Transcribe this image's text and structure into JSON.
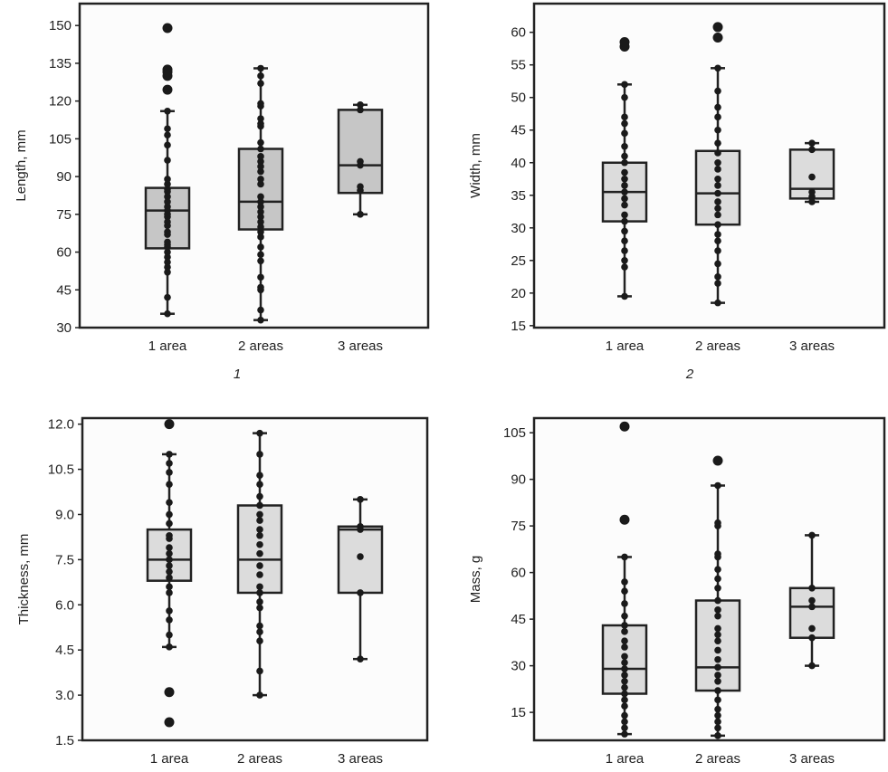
{
  "chart_data": [
    {
      "type": "box",
      "ylabel": "Length, mm",
      "caption": "1",
      "categories": [
        "1 area",
        "2 areas",
        "3 areas"
      ],
      "yticks": [
        30,
        45,
        60,
        75,
        90,
        105,
        120,
        135,
        150
      ],
      "ylim": [
        30,
        158.7
      ],
      "box_fill": "#c6c6c6",
      "groups": [
        {
          "whisker_low": 35.5,
          "q1": 61.5,
          "median": 76.5,
          "q3": 85.5,
          "whisker_high": 116,
          "outliers": [
            124.5,
            130,
            131.5,
            132.5,
            149
          ],
          "points": [
            35.5,
            42,
            52,
            54,
            56,
            58,
            60,
            62,
            63,
            64,
            67,
            68,
            70.5,
            72,
            74,
            75,
            76.5,
            78,
            80,
            82,
            84,
            85,
            87,
            89,
            96.5,
            102.5,
            106.5,
            109,
            116
          ]
        },
        {
          "whisker_low": 33,
          "q1": 69,
          "median": 80,
          "q3": 101,
          "whisker_high": 133,
          "outliers": [],
          "points": [
            33,
            37,
            45,
            46,
            50,
            56.5,
            59,
            62,
            66,
            68,
            70,
            72,
            74,
            76,
            78,
            80,
            82,
            87,
            89,
            92,
            94,
            96,
            98,
            101,
            103.5,
            110,
            111,
            113,
            118,
            119,
            127,
            130,
            133
          ]
        },
        {
          "whisker_low": 75,
          "q1": 83.5,
          "median": 94.5,
          "q3": 116.5,
          "whisker_high": 118.5,
          "outliers": [],
          "points": [
            75,
            84.5,
            86,
            94.5,
            96,
            116.5,
            118.5
          ]
        }
      ]
    },
    {
      "type": "box",
      "ylabel": "Width, mm",
      "caption": "2",
      "categories": [
        "1 area",
        "2 areas",
        "3 areas"
      ],
      "yticks": [
        15,
        20,
        25,
        30,
        35,
        40,
        45,
        50,
        55,
        60
      ],
      "ylim": [
        14.7,
        64.4
      ],
      "box_fill": "#dcdcdc",
      "groups": [
        {
          "whisker_low": 19.5,
          "q1": 31,
          "median": 35.5,
          "q3": 40,
          "whisker_high": 52,
          "outliers": [
            57.8,
            58.5
          ],
          "points": [
            19.5,
            24,
            25,
            26.5,
            28,
            29.5,
            31,
            32,
            33.5,
            34.5,
            35.5,
            36.5,
            37.5,
            38.5,
            40,
            41,
            42.5,
            44.5,
            46,
            47,
            50,
            52
          ]
        },
        {
          "whisker_low": 18.5,
          "q1": 30.5,
          "median": 35.3,
          "q3": 41.8,
          "whisker_high": 54.5,
          "outliers": [
            59.2,
            60.8
          ],
          "points": [
            18.5,
            21.5,
            22.5,
            24.5,
            26.5,
            28,
            29,
            30.5,
            32,
            33,
            34,
            35.3,
            36.5,
            37.5,
            39,
            40,
            41.5,
            43,
            45,
            47,
            48.5,
            51,
            54.5
          ]
        },
        {
          "whisker_low": 34,
          "q1": 34.5,
          "median": 36,
          "q3": 42,
          "whisker_high": 43,
          "outliers": [],
          "points": [
            34,
            34.8,
            35.5,
            37.8,
            42,
            43
          ]
        }
      ]
    },
    {
      "type": "box",
      "ylabel": "Thickness, mm",
      "caption": "",
      "categories": [
        "1 area",
        "2 areas",
        "3 areas"
      ],
      "yticks": [
        1.5,
        3.0,
        4.5,
        6.0,
        7.5,
        9.0,
        10.5,
        12.0
      ],
      "ylim": [
        1.5,
        12.2
      ],
      "box_fill": "#dcdcdc",
      "groups": [
        {
          "whisker_low": 4.6,
          "q1": 6.8,
          "median": 7.5,
          "q3": 8.5,
          "whisker_high": 11,
          "outliers": [
            2.1,
            3.1,
            12
          ],
          "points": [
            4.6,
            5.0,
            5.5,
            5.8,
            6.4,
            6.6,
            6.9,
            7.1,
            7.3,
            7.5,
            7.7,
            7.9,
            8.2,
            8.3,
            8.7,
            9.0,
            9.4,
            10.0,
            10.4,
            10.7,
            11
          ]
        },
        {
          "whisker_low": 3,
          "q1": 6.4,
          "median": 7.5,
          "q3": 9.3,
          "whisker_high": 11.7,
          "outliers": [],
          "points": [
            3,
            3.8,
            4.8,
            5.1,
            5.3,
            5.9,
            6.1,
            6.4,
            6.6,
            7.0,
            7.3,
            7.7,
            8.0,
            8.3,
            8.5,
            8.8,
            9.0,
            9.3,
            9.6,
            10.0,
            10.3,
            11.0,
            11.7
          ]
        },
        {
          "whisker_low": 4.2,
          "q1": 6.4,
          "median": 8.5,
          "q3": 8.6,
          "whisker_high": 9.5,
          "outliers": [],
          "points": [
            4.2,
            6.4,
            7.6,
            8.5,
            8.6,
            9.5
          ]
        }
      ]
    },
    {
      "type": "box",
      "ylabel": "Mass, g",
      "caption": "",
      "categories": [
        "1 area",
        "2 areas",
        "3 areas"
      ],
      "yticks": [
        15,
        30,
        45,
        60,
        75,
        90,
        105
      ],
      "ylim": [
        6,
        109.7
      ],
      "box_fill": "#dcdcdc",
      "groups": [
        {
          "whisker_low": 8,
          "q1": 21,
          "median": 29,
          "q3": 43,
          "whisker_high": 65,
          "outliers": [
            77,
            107
          ],
          "points": [
            8,
            10,
            12,
            14,
            17,
            19,
            21,
            23,
            25,
            27,
            29,
            31,
            33,
            36,
            38,
            41,
            43,
            46,
            50,
            54,
            57,
            65
          ]
        },
        {
          "whisker_low": 7.5,
          "q1": 22,
          "median": 29.5,
          "q3": 51,
          "whisker_high": 88,
          "outliers": [
            96
          ],
          "points": [
            7.5,
            10,
            12,
            14,
            16,
            19,
            22,
            25,
            27,
            29.5,
            32,
            35,
            38,
            40,
            42,
            46,
            48,
            51,
            55,
            58,
            61,
            65,
            66,
            75,
            76,
            88
          ]
        },
        {
          "whisker_low": 30,
          "q1": 39,
          "median": 49,
          "q3": 55,
          "whisker_high": 72,
          "outliers": [],
          "points": [
            30,
            39,
            42,
            49,
            51,
            55,
            72
          ]
        }
      ]
    }
  ]
}
